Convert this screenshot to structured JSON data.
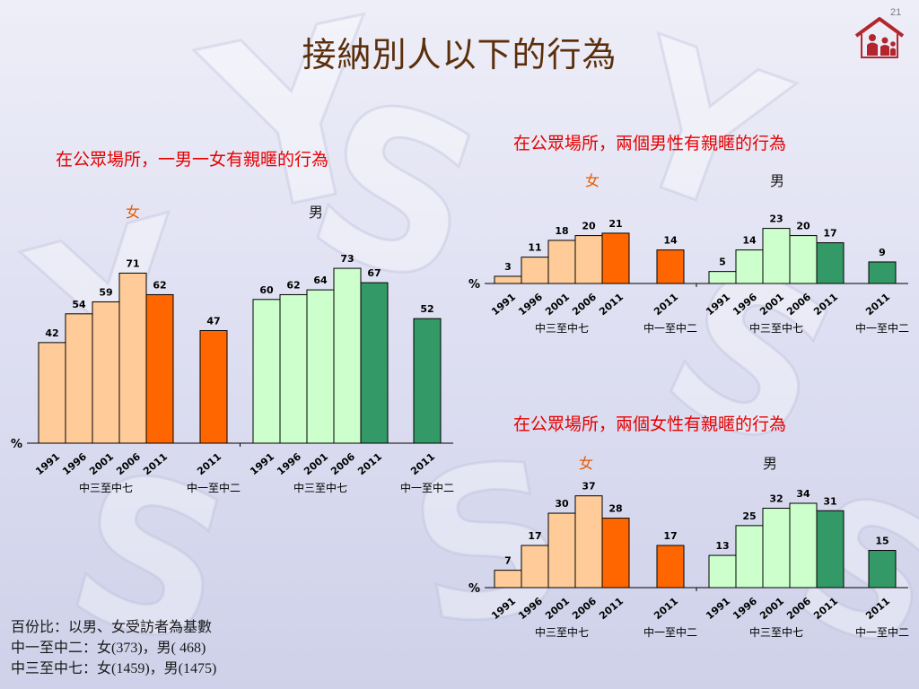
{
  "page_number": "21",
  "slide_title": "接納別人以下的行為",
  "colors": {
    "female_past": "#ffcc99",
    "female_current": "#ff6600",
    "male_past": "#ccffcc",
    "male_current": "#339966",
    "title": "#5c2f0c",
    "chart_title": "#e60000"
  },
  "logo_icon": "house-family-logo-icon",
  "footnote": {
    "line1": "百份比：以男、女受訪者為基數",
    "line2": "中一至中二：女(373)，男( 468)",
    "line3": "中三至中七：女(1459)，男(1475)"
  },
  "chart_data": [
    {
      "type": "bar",
      "title": "在公眾場所，一男一女有親暱的行為",
      "ylabel": "%",
      "ylim": [
        0,
        80
      ],
      "grid": false,
      "legend": "none",
      "groups": [
        {
          "gender": "女",
          "level": "中三至中七",
          "categories": [
            "1991",
            "1996",
            "2001",
            "2006",
            "2011"
          ],
          "values": [
            42,
            54,
            59,
            71,
            62
          ]
        },
        {
          "gender": "女",
          "level": "中一至中二",
          "categories": [
            "2011"
          ],
          "values": [
            47
          ]
        },
        {
          "gender": "男",
          "level": "中三至中七",
          "categories": [
            "1991",
            "1996",
            "2001",
            "2006",
            "2011"
          ],
          "values": [
            60,
            62,
            64,
            73,
            67
          ]
        },
        {
          "gender": "男",
          "level": "中一至中二",
          "categories": [
            "2011"
          ],
          "values": [
            52
          ]
        }
      ]
    },
    {
      "type": "bar",
      "title": "在公眾場所，兩個男性有親暱的行為",
      "ylabel": "%",
      "ylim": [
        0,
        26
      ],
      "grid": false,
      "legend": "none",
      "groups": [
        {
          "gender": "女",
          "level": "中三至中七",
          "categories": [
            "1991",
            "1996",
            "2001",
            "2006",
            "2011"
          ],
          "values": [
            3,
            11,
            18,
            20,
            21
          ]
        },
        {
          "gender": "女",
          "level": "中一至中二",
          "categories": [
            "2011"
          ],
          "values": [
            14
          ]
        },
        {
          "gender": "男",
          "level": "中三至中七",
          "categories": [
            "1991",
            "1996",
            "2001",
            "2006",
            "2011"
          ],
          "values": [
            5,
            14,
            23,
            20,
            17
          ]
        },
        {
          "gender": "男",
          "level": "中一至中二",
          "categories": [
            "2011"
          ],
          "values": [
            9
          ]
        }
      ]
    },
    {
      "type": "bar",
      "title": "在公眾場所，兩個女性有親暱的行為",
      "ylabel": "%",
      "ylim": [
        0,
        40
      ],
      "grid": false,
      "legend": "none",
      "groups": [
        {
          "gender": "女",
          "level": "中三至中七",
          "categories": [
            "1991",
            "1996",
            "2001",
            "2006",
            "2011"
          ],
          "values": [
            7,
            17,
            30,
            37,
            28
          ]
        },
        {
          "gender": "女",
          "level": "中一至中二",
          "categories": [
            "2011"
          ],
          "values": [
            17
          ]
        },
        {
          "gender": "男",
          "level": "中三至中七",
          "categories": [
            "1991",
            "1996",
            "2001",
            "2006",
            "2011"
          ],
          "values": [
            13,
            25,
            32,
            34,
            31
          ]
        },
        {
          "gender": "男",
          "level": "中一至中二",
          "categories": [
            "2011"
          ],
          "values": [
            15
          ]
        }
      ]
    }
  ]
}
